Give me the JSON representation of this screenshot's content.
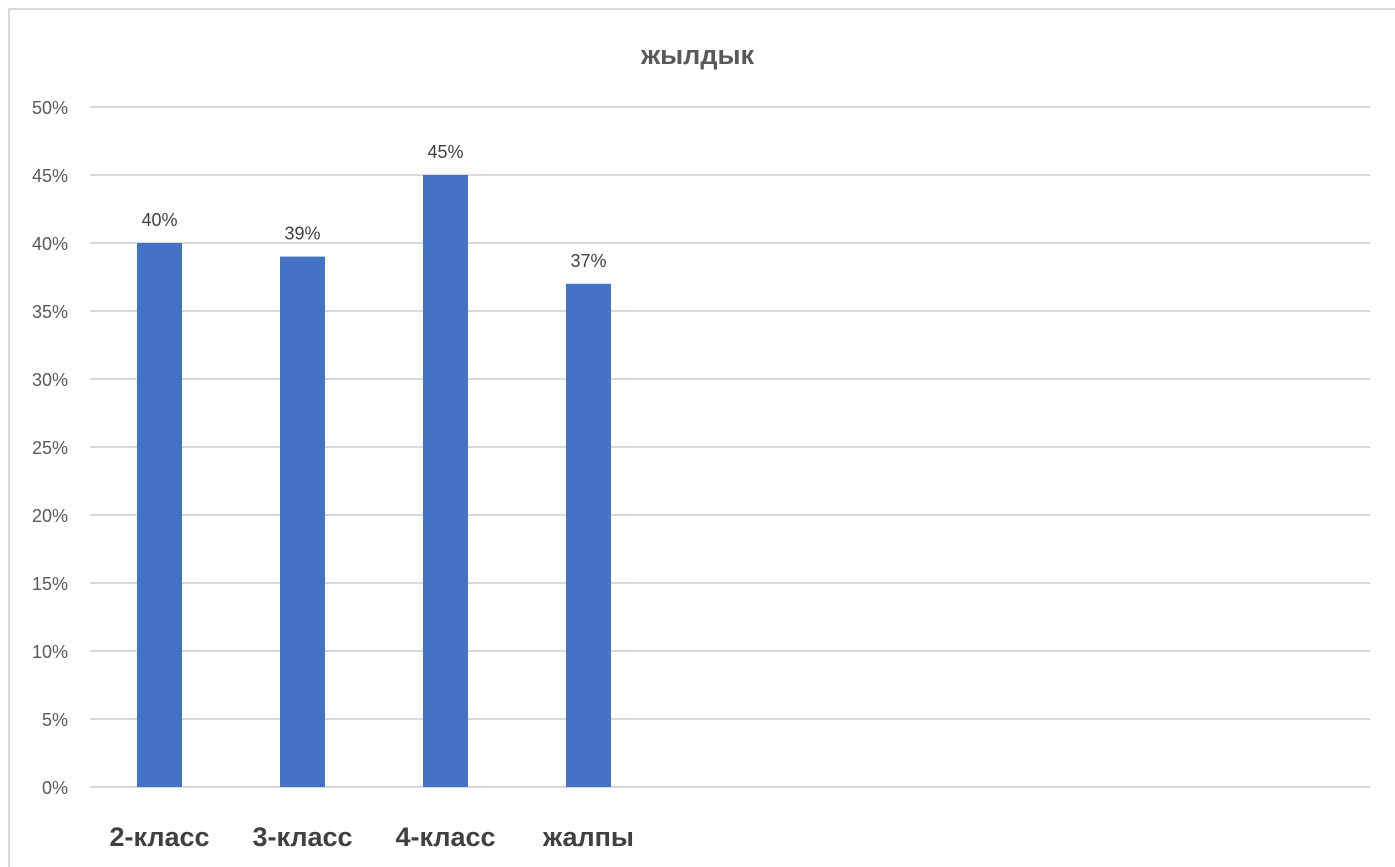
{
  "chart_data": {
    "type": "bar",
    "title": "жылдык",
    "categories": [
      "2-класс",
      "3-класс",
      "4-класс",
      "жалпы"
    ],
    "values": [
      40,
      39,
      45,
      37
    ],
    "data_labels": [
      "40%",
      "39%",
      "45%",
      "37%"
    ],
    "y_ticks": [
      "0%",
      "5%",
      "10%",
      "15%",
      "20%",
      "25%",
      "30%",
      "35%",
      "40%",
      "45%",
      "50%"
    ],
    "ylim": [
      0,
      50
    ],
    "unit": "%",
    "grid": true,
    "legend": "none",
    "colors": {
      "bar": "#4472c4",
      "grid": "#d9d9d9"
    }
  }
}
